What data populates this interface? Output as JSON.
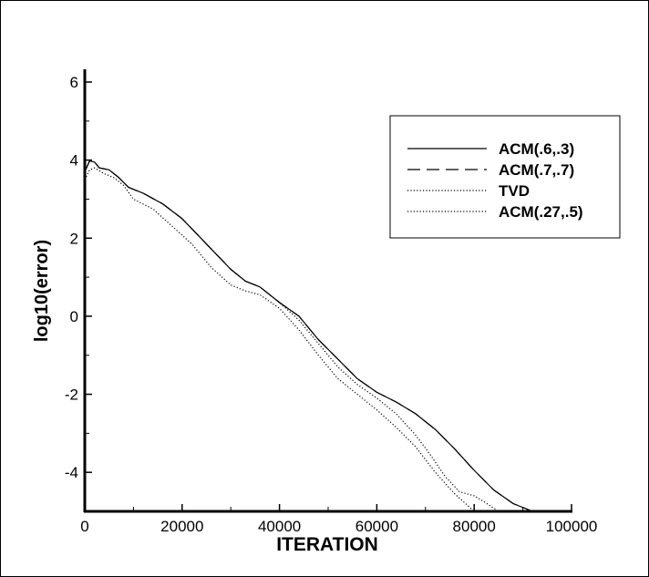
{
  "chart_data": {
    "type": "line",
    "title": "",
    "xlabel": "ITERATION",
    "ylabel": "log10(error)",
    "xlim": [
      0,
      100000
    ],
    "ylim": [
      -5,
      6
    ],
    "xticks": [
      0,
      20000,
      40000,
      60000,
      80000,
      100000
    ],
    "yticks": [
      -4,
      -2,
      0,
      2,
      4,
      6
    ],
    "xtick_labels": [
      "0",
      "20000",
      "40000",
      "60000",
      "80000",
      "100000"
    ],
    "ytick_labels": [
      "-4",
      "-2",
      "0",
      "2",
      "4",
      "6"
    ],
    "grid": false,
    "legend_position": "top-right",
    "series": [
      {
        "name": "ACM(.6,.3)",
        "dash": "solid",
        "points": [
          [
            0,
            3.7
          ],
          [
            1000,
            3.98
          ],
          [
            2000,
            3.95
          ],
          [
            3000,
            3.8
          ],
          [
            5000,
            3.75
          ],
          [
            7000,
            3.55
          ],
          [
            9000,
            3.3
          ],
          [
            12000,
            3.15
          ],
          [
            16000,
            2.88
          ],
          [
            20000,
            2.5
          ],
          [
            25000,
            1.85
          ],
          [
            30000,
            1.2
          ],
          [
            33000,
            0.9
          ],
          [
            36000,
            0.75
          ],
          [
            40000,
            0.35
          ],
          [
            44000,
            0
          ],
          [
            48000,
            -0.6
          ],
          [
            52000,
            -1.1
          ],
          [
            56000,
            -1.6
          ],
          [
            60000,
            -1.95
          ],
          [
            64000,
            -2.2
          ],
          [
            68000,
            -2.5
          ],
          [
            72000,
            -2.9
          ],
          [
            76000,
            -3.4
          ],
          [
            80000,
            -3.95
          ],
          [
            84000,
            -4.45
          ],
          [
            88000,
            -4.8
          ],
          [
            92000,
            -5.0
          ]
        ]
      },
      {
        "name": "ACM(.7,.7)",
        "dash": "dash",
        "points": [
          [
            0,
            3.7
          ],
          [
            1000,
            3.98
          ],
          [
            2000,
            3.95
          ],
          [
            3000,
            3.8
          ],
          [
            5000,
            3.75
          ],
          [
            7000,
            3.55
          ],
          [
            9000,
            3.3
          ],
          [
            12000,
            3.15
          ],
          [
            16000,
            2.88
          ],
          [
            20000,
            2.5
          ],
          [
            25000,
            1.85
          ],
          [
            30000,
            1.2
          ],
          [
            33000,
            0.9
          ],
          [
            36000,
            0.75
          ],
          [
            40000,
            0.35
          ],
          [
            44000,
            0
          ],
          [
            48000,
            -0.6
          ],
          [
            52000,
            -1.1
          ],
          [
            56000,
            -1.6
          ],
          [
            60000,
            -1.95
          ],
          [
            64000,
            -2.2
          ],
          [
            68000,
            -2.5
          ],
          [
            72000,
            -2.9
          ],
          [
            76000,
            -3.4
          ],
          [
            80000,
            -3.95
          ],
          [
            84000,
            -4.45
          ],
          [
            88000,
            -4.8
          ],
          [
            92000,
            -5.0
          ]
        ]
      },
      {
        "name": "TVD",
        "dash": "dot",
        "points": [
          [
            0,
            3.5
          ],
          [
            1000,
            3.75
          ],
          [
            2000,
            3.8
          ],
          [
            4000,
            3.65
          ],
          [
            6000,
            3.55
          ],
          [
            8000,
            3.35
          ],
          [
            10000,
            3.0
          ],
          [
            14000,
            2.75
          ],
          [
            18000,
            2.3
          ],
          [
            22000,
            1.85
          ],
          [
            26000,
            1.25
          ],
          [
            30000,
            0.8
          ],
          [
            33000,
            0.65
          ],
          [
            36000,
            0.55
          ],
          [
            40000,
            0.2
          ],
          [
            44000,
            -0.35
          ],
          [
            48000,
            -1.0
          ],
          [
            52000,
            -1.6
          ],
          [
            56000,
            -2.0
          ],
          [
            60000,
            -2.4
          ],
          [
            64000,
            -2.85
          ],
          [
            68000,
            -3.35
          ],
          [
            72000,
            -4.0
          ],
          [
            76000,
            -4.55
          ],
          [
            80000,
            -5.0
          ]
        ]
      },
      {
        "name": "ACM(.27,.5)",
        "dash": "dot",
        "points": [
          [
            0,
            3.7
          ],
          [
            1000,
            3.98
          ],
          [
            2000,
            3.95
          ],
          [
            3000,
            3.8
          ],
          [
            5000,
            3.75
          ],
          [
            7000,
            3.55
          ],
          [
            9000,
            3.3
          ],
          [
            12000,
            3.15
          ],
          [
            16000,
            2.88
          ],
          [
            20000,
            2.5
          ],
          [
            25000,
            1.85
          ],
          [
            30000,
            1.2
          ],
          [
            33000,
            0.9
          ],
          [
            36000,
            0.75
          ],
          [
            40000,
            0.35
          ],
          [
            44000,
            -0.1
          ],
          [
            48000,
            -0.7
          ],
          [
            52000,
            -1.3
          ],
          [
            56000,
            -1.75
          ],
          [
            60000,
            -2.1
          ],
          [
            64000,
            -2.5
          ],
          [
            68000,
            -3.05
          ],
          [
            71000,
            -3.55
          ],
          [
            74000,
            -4.1
          ],
          [
            77000,
            -4.5
          ],
          [
            80000,
            -4.6
          ],
          [
            82000,
            -4.75
          ],
          [
            85000,
            -5.0
          ]
        ]
      }
    ]
  }
}
